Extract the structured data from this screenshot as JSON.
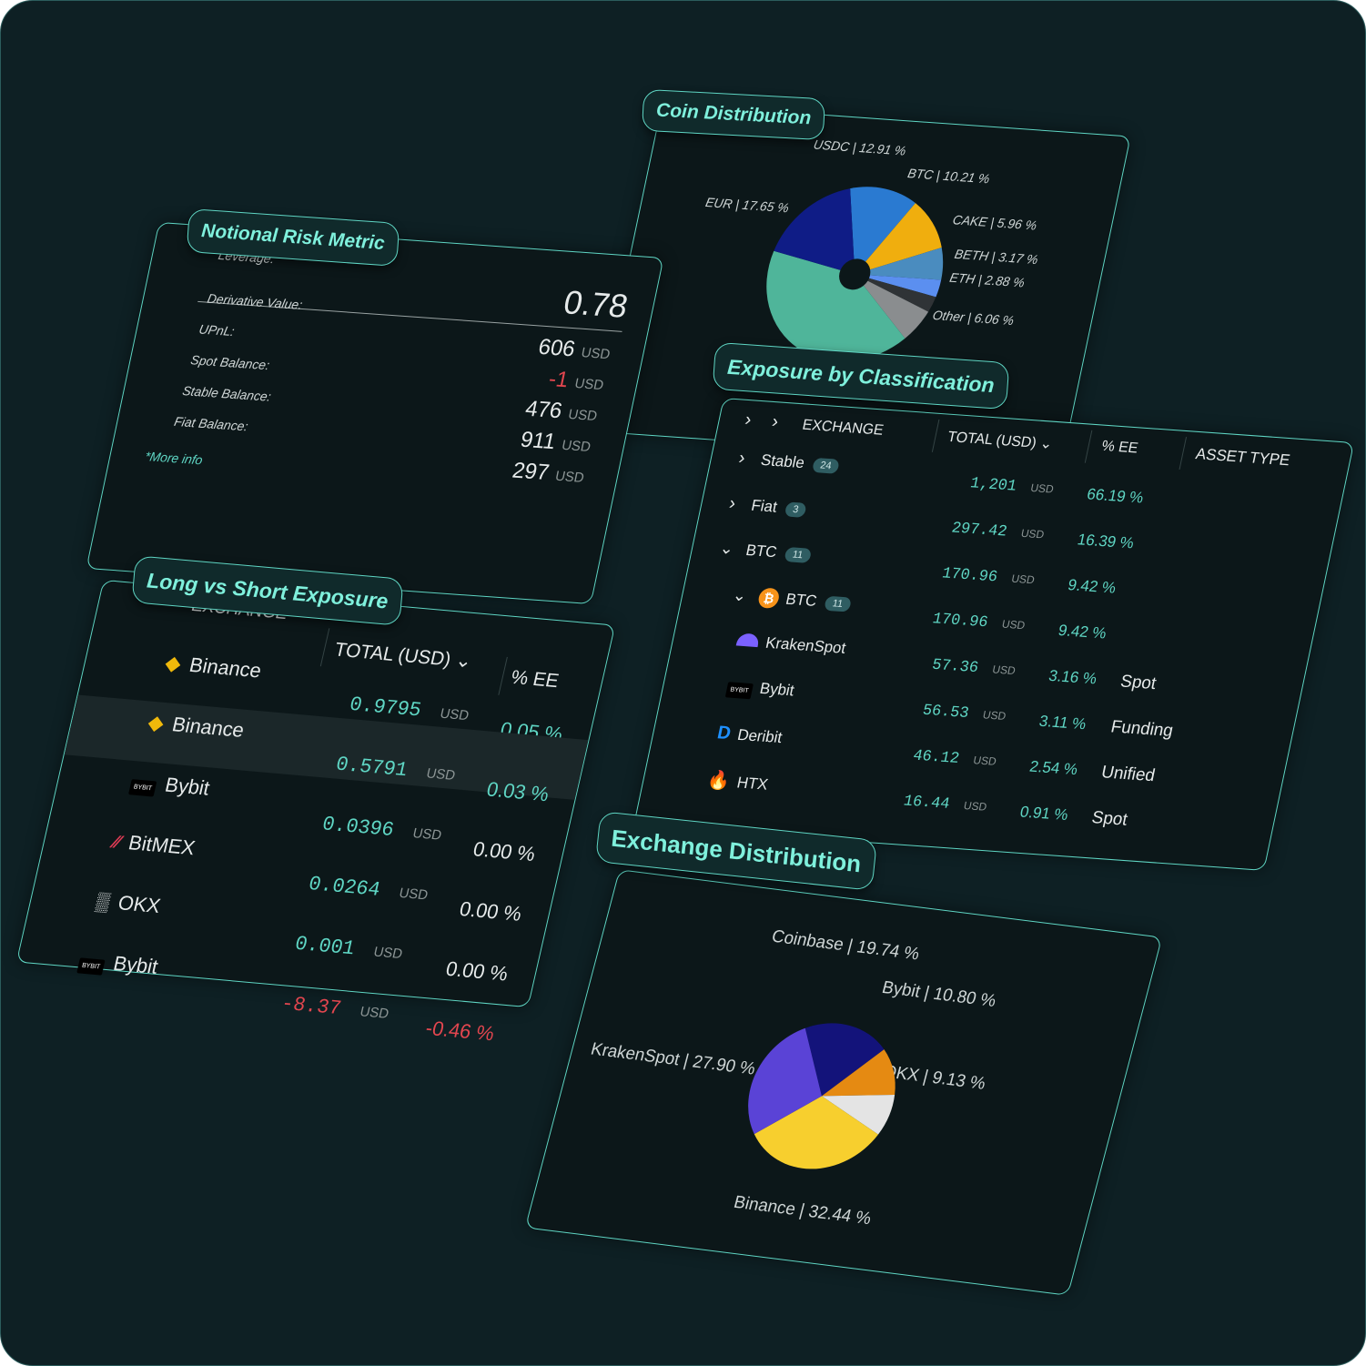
{
  "coin_distribution": {
    "title": "Coin Distribution",
    "slices": [
      {
        "label": "USDC | 12.91 %",
        "value": 12.91,
        "color": "#2a7ad1"
      },
      {
        "label": "BTC | 10.21 %",
        "value": 10.21,
        "color": "#f0ae0e"
      },
      {
        "label": "CAKE | 5.96 %",
        "value": 5.96,
        "color": "#4a8cbf"
      },
      {
        "label": "BETH | 3.17 %",
        "value": 3.17,
        "color": "#5b8ff0"
      },
      {
        "label": "ETH | 2.88 %",
        "value": 2.88,
        "color": "#2f3336"
      },
      {
        "label": "Other | 6.06 %",
        "value": 6.06,
        "color": "#8a8d8f"
      },
      {
        "label": "",
        "value": 41.16,
        "color": "#4fb59a"
      },
      {
        "label": "EUR | 17.65 %",
        "value": 17.65,
        "color": "#0f1c86"
      }
    ]
  },
  "notional_risk": {
    "title": "Notional Risk Metric",
    "leverage_label": "Leverage:",
    "leverage_value": "0.78",
    "rows": [
      {
        "label": "Derivative Value:",
        "value": "606",
        "unit": "USD",
        "negative": false
      },
      {
        "label": "UPnL:",
        "value": "-1",
        "unit": "USD",
        "negative": true
      },
      {
        "label": "Spot Balance:",
        "value": "476",
        "unit": "USD",
        "negative": false
      },
      {
        "label": "Stable Balance:",
        "value": "911",
        "unit": "USD",
        "negative": false
      },
      {
        "label": "Fiat Balance:",
        "value": "297",
        "unit": "USD",
        "negative": false
      }
    ],
    "more_info": "*More info"
  },
  "long_short": {
    "title": "Long vs Short Exposure",
    "col_exchange": "EXCHANGE",
    "col_total": "TOTAL (USD)",
    "col_ee": "% EE",
    "rows": [
      {
        "exchange": "Binance",
        "icon": "binance-icon",
        "total": "0.9795",
        "unit": "USD",
        "ee": "0.05 %",
        "ee_color": "teal",
        "negative": false
      },
      {
        "exchange": "Binance",
        "icon": "binance-icon",
        "total": "0.5791",
        "unit": "USD",
        "ee": "0.03 %",
        "ee_color": "teal",
        "negative": false
      },
      {
        "exchange": "Bybit",
        "icon": "bybit-icon",
        "total": "0.0396",
        "unit": "USD",
        "ee": "0.00 %",
        "ee_color": "white",
        "negative": false
      },
      {
        "exchange": "BitMEX",
        "icon": "bitmex-icon",
        "total": "0.0264",
        "unit": "USD",
        "ee": "0.00 %",
        "ee_color": "white",
        "negative": false
      },
      {
        "exchange": "OKX",
        "icon": "okx-icon",
        "total": "0.001",
        "unit": "USD",
        "ee": "0.00 %",
        "ee_color": "white",
        "negative": false
      },
      {
        "exchange": "Bybit",
        "icon": "bybit-icon",
        "total": "-8.37",
        "unit": "USD",
        "ee": "-0.46 %",
        "ee_color": "red",
        "negative": true
      }
    ]
  },
  "exposure": {
    "title": "Exposure by Classification",
    "col_exchange": "EXCHANGE",
    "col_total": "TOTAL (USD)",
    "col_ee": "% EE",
    "col_asset": "ASSET TYPE",
    "rows": [
      {
        "name": "Stable",
        "badge": "24",
        "total": "1,201",
        "unit": "USD",
        "ee": "66.19 %",
        "asset": "",
        "chevron": "right",
        "icon": ""
      },
      {
        "name": "Fiat",
        "badge": "3",
        "total": "297.42",
        "unit": "USD",
        "ee": "16.39 %",
        "asset": "",
        "chevron": "right",
        "icon": ""
      },
      {
        "name": "BTC",
        "badge": "11",
        "total": "170.96",
        "unit": "USD",
        "ee": "9.42 %",
        "asset": "",
        "chevron": "down",
        "icon": ""
      },
      {
        "name": "BTC",
        "badge": "11",
        "total": "170.96",
        "unit": "USD",
        "ee": "9.42 %",
        "asset": "",
        "chevron": "down",
        "icon": "bitcoin-icon"
      },
      {
        "name": "KrakenSpot",
        "badge": "",
        "total": "57.36",
        "unit": "USD",
        "ee": "3.16 %",
        "asset": "Spot",
        "chevron": "",
        "icon": "kraken-icon"
      },
      {
        "name": "Bybit",
        "badge": "",
        "total": "56.53",
        "unit": "USD",
        "ee": "3.11 %",
        "asset": "Funding",
        "chevron": "",
        "icon": "bybit-icon"
      },
      {
        "name": "Deribit",
        "badge": "",
        "total": "46.12",
        "unit": "USD",
        "ee": "2.54 %",
        "asset": "Unified",
        "chevron": "",
        "icon": "deribit-icon"
      },
      {
        "name": "HTX",
        "badge": "",
        "total": "16.44",
        "unit": "USD",
        "ee": "0.91 %",
        "asset": "Spot",
        "chevron": "",
        "icon": "htx-icon"
      }
    ]
  },
  "exchange_distribution": {
    "title": "Exchange Distribution",
    "slices": [
      {
        "label": "Coinbase | 19.74 %",
        "value": 19.74,
        "color": "#13137a"
      },
      {
        "label": "Bybit | 10.80 %",
        "value": 10.8,
        "color": "#e58a12"
      },
      {
        "label": "OKX | 9.13 %",
        "value": 9.13,
        "color": "#e4e4e4"
      },
      {
        "label": "Binance | 32.44 %",
        "value": 32.44,
        "color": "#f7cf2e"
      },
      {
        "label": "KrakenSpot | 27.90 %",
        "value": 27.9,
        "color": "#5a43d6"
      }
    ]
  }
}
